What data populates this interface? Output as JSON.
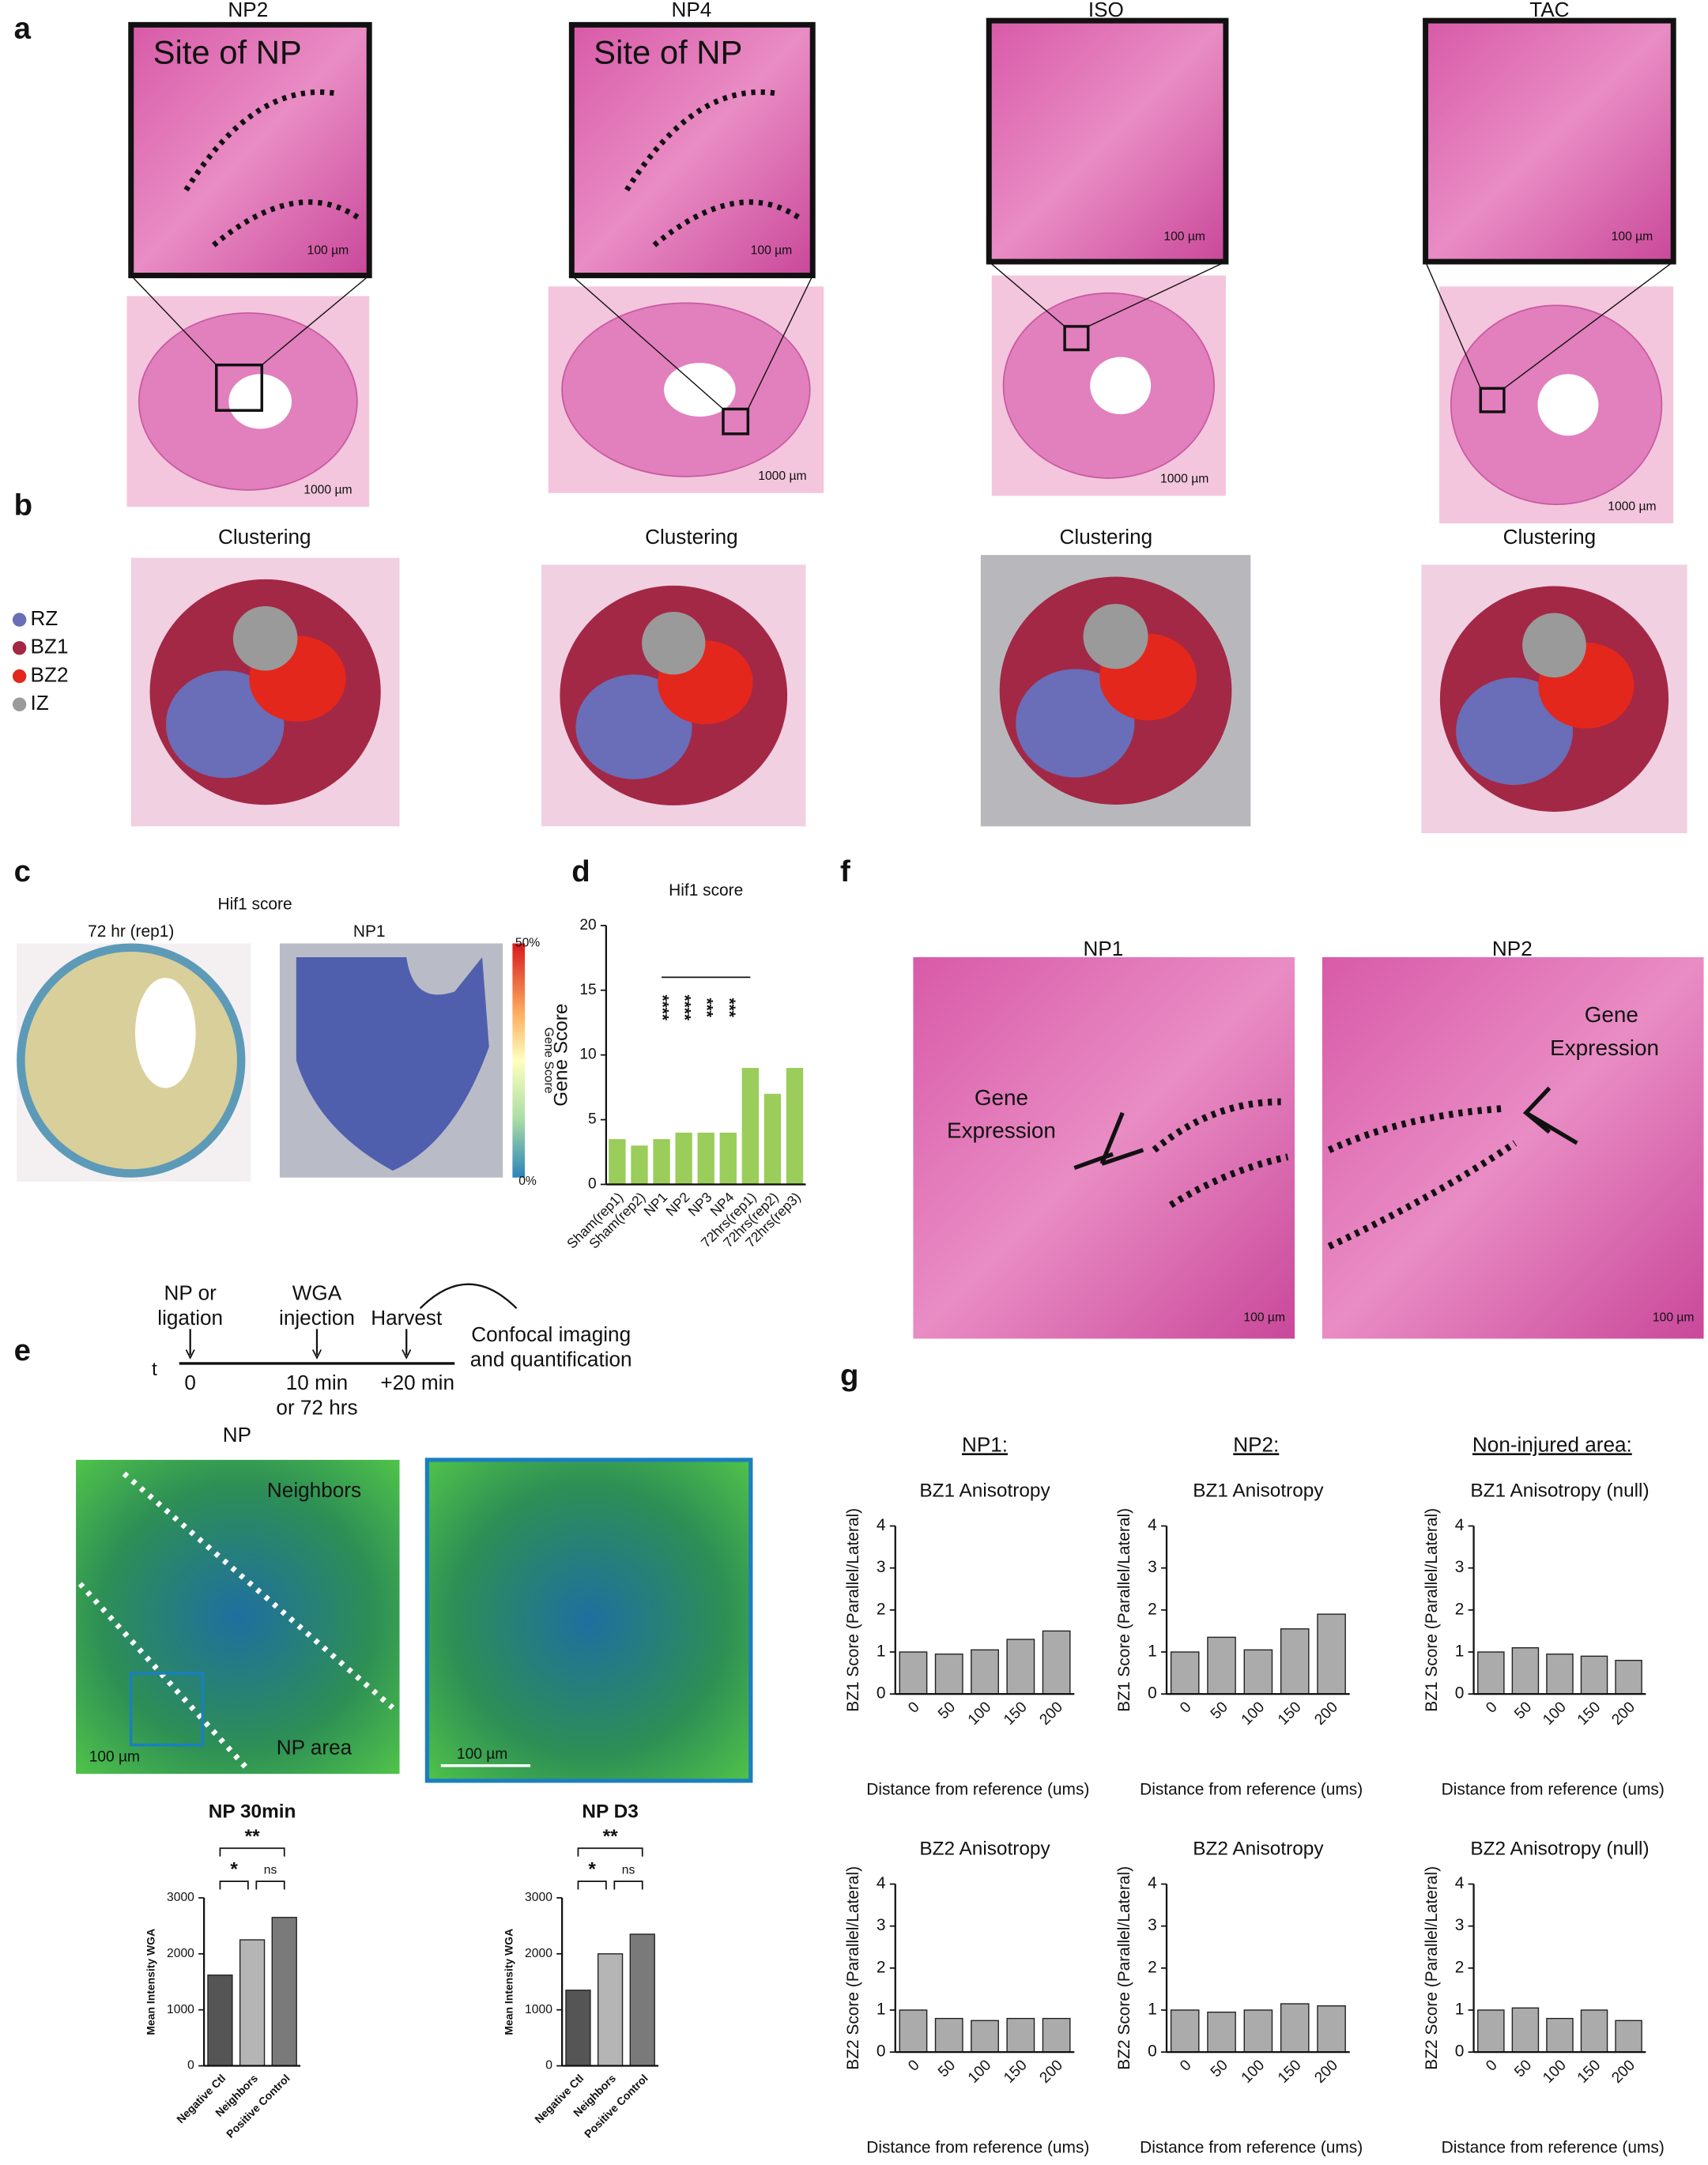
{
  "panel_labels": [
    "a",
    "b",
    "c",
    "d",
    "e",
    "f",
    "g"
  ],
  "panel_a": {
    "titles": [
      "NP2",
      "NP4",
      "ISO",
      "TAC"
    ],
    "inset_label": "Site of NP",
    "scale_inset": "100 µm",
    "scale_section": "1000 µm"
  },
  "panel_b": {
    "title": "Clustering",
    "legend": [
      {
        "name": "RZ",
        "color": "#6a6db8"
      },
      {
        "name": "BZ1",
        "color": "#a32845"
      },
      {
        "name": "BZ2",
        "color": "#e4271c"
      },
      {
        "name": "IZ",
        "color": "#9a9a9a"
      }
    ]
  },
  "panel_c": {
    "title": "Hif1 score",
    "subtitles": [
      "72 hr (rep1)",
      "NP1"
    ],
    "colorbar": {
      "max": "50%",
      "min": "0%",
      "label": "Gene Score"
    }
  },
  "panel_e": {
    "timeline": {
      "axis": "t",
      "events": [
        {
          "label": [
            "NP or",
            "ligation"
          ],
          "time": [
            "0"
          ]
        },
        {
          "label": [
            "WGA",
            "injection"
          ],
          "time": [
            "10 min",
            "or 72 hrs"
          ]
        },
        {
          "label": [
            "Harvest"
          ],
          "time": [
            "+20 min"
          ]
        }
      ],
      "outcome": [
        "Confocal imaging",
        "and quantification"
      ]
    },
    "image_title": "NP",
    "regions": [
      "Neighbors",
      "NP area"
    ],
    "scale": "100 µm"
  },
  "panel_f": {
    "titles": [
      "NP1",
      "NP2"
    ],
    "annotation": [
      "Gene",
      "Expression"
    ],
    "scale": "100 µm"
  },
  "panel_g": {
    "headers": [
      "NP1:",
      "NP2:",
      "Non-injured area:"
    ]
  },
  "chart_data": [
    {
      "type": "bar",
      "title": "Hif1 score",
      "ylabel": "Gene Score",
      "categories": [
        "Sham(rep1)",
        "Sham(rep2)",
        "NP1",
        "NP2",
        "NP3",
        "NP4",
        "72hrs(rep1)",
        "72hrs(rep2)",
        "72hrs(rep3)"
      ],
      "values": [
        3.5,
        3,
        3.5,
        4,
        4,
        4,
        9,
        7,
        9
      ],
      "color": "#9acd5a",
      "ylim": [
        0,
        20
      ],
      "yticks": [
        0,
        5,
        10,
        15,
        20
      ],
      "annotations": [
        "****",
        "****",
        "***",
        "***"
      ]
    },
    {
      "type": "bar",
      "title": "NP 30min",
      "ylabel": "Mean Intensity WGA",
      "categories": [
        "Negative Ctl",
        "Neighbors",
        "Positive Control"
      ],
      "values": [
        1620,
        2250,
        2650
      ],
      "colors": [
        "#555555",
        "#b5b5b5",
        "#7a7a7a"
      ],
      "ylim": [
        0,
        3000
      ],
      "yticks": [
        0,
        1000,
        2000,
        3000
      ],
      "annotations": [
        "**",
        "*",
        "ns"
      ]
    },
    {
      "type": "bar",
      "title": "NP D3",
      "ylabel": "Mean Intensity WGA",
      "categories": [
        "Negative Ctl",
        "Neighbors",
        "Positive Control"
      ],
      "values": [
        1350,
        2000,
        2350
      ],
      "colors": [
        "#555555",
        "#b5b5b5",
        "#7a7a7a"
      ],
      "ylim": [
        0,
        3000
      ],
      "yticks": [
        0,
        1000,
        2000,
        3000
      ],
      "annotations": [
        "**",
        "*",
        "ns"
      ]
    },
    {
      "type": "bar",
      "title": "BZ1 Anisotropy",
      "ylabel": "BZ1 Score (Parallel/Lateral)",
      "xlabel": "Distance from reference (ums)",
      "categories": [
        "0",
        "50",
        "100",
        "150",
        "200"
      ],
      "values": [
        1,
        0.95,
        1.05,
        1.3,
        1.5
      ],
      "color": "#ababab",
      "ylim": [
        0,
        4
      ],
      "yticks": [
        0,
        1,
        2,
        3,
        4
      ]
    },
    {
      "type": "bar",
      "title": "BZ1 Anisotropy",
      "ylabel": "BZ1 Score (Parallel/Lateral)",
      "xlabel": "Distance from reference (ums)",
      "categories": [
        "0",
        "50",
        "100",
        "150",
        "200"
      ],
      "values": [
        1,
        1.35,
        1.05,
        1.55,
        1.9
      ],
      "color": "#ababab",
      "ylim": [
        0,
        4
      ],
      "yticks": [
        0,
        1,
        2,
        3,
        4
      ]
    },
    {
      "type": "bar",
      "title": "BZ1 Anisotropy (null)",
      "ylabel": "BZ1 Score (Parallel/Lateral)",
      "xlabel": "Distance from reference (ums)",
      "categories": [
        "0",
        "50",
        "100",
        "150",
        "200"
      ],
      "values": [
        1,
        1.1,
        0.95,
        0.9,
        0.8
      ],
      "color": "#ababab",
      "ylim": [
        0,
        4
      ],
      "yticks": [
        0,
        1,
        2,
        3,
        4
      ]
    },
    {
      "type": "bar",
      "title": "BZ2 Anisotropy",
      "ylabel": "BZ2 Score (Parallel/Lateral)",
      "xlabel": "Distance from reference (ums)",
      "categories": [
        "0",
        "50",
        "100",
        "150",
        "200"
      ],
      "values": [
        1,
        0.8,
        0.75,
        0.8,
        0.8
      ],
      "color": "#ababab",
      "ylim": [
        0,
        4
      ],
      "yticks": [
        0,
        1,
        2,
        3,
        4
      ]
    },
    {
      "type": "bar",
      "title": "BZ2 Anisotropy",
      "ylabel": "BZ2 Score (Parallel/Lateral)",
      "xlabel": "Distance from reference (ums)",
      "categories": [
        "0",
        "50",
        "100",
        "150",
        "200"
      ],
      "values": [
        1,
        0.95,
        1.0,
        1.15,
        1.1
      ],
      "color": "#ababab",
      "ylim": [
        0,
        4
      ],
      "yticks": [
        0,
        1,
        2,
        3,
        4
      ]
    },
    {
      "type": "bar",
      "title": "BZ2 Anisotropy (null)",
      "ylabel": "BZ2 Score (Parallel/Lateral)",
      "xlabel": "Distance from reference (ums)",
      "categories": [
        "0",
        "50",
        "100",
        "150",
        "200"
      ],
      "values": [
        1,
        1.05,
        0.8,
        1.0,
        0.75
      ],
      "color": "#ababab",
      "ylim": [
        0,
        4
      ],
      "yticks": [
        0,
        1,
        2,
        3,
        4
      ]
    }
  ]
}
